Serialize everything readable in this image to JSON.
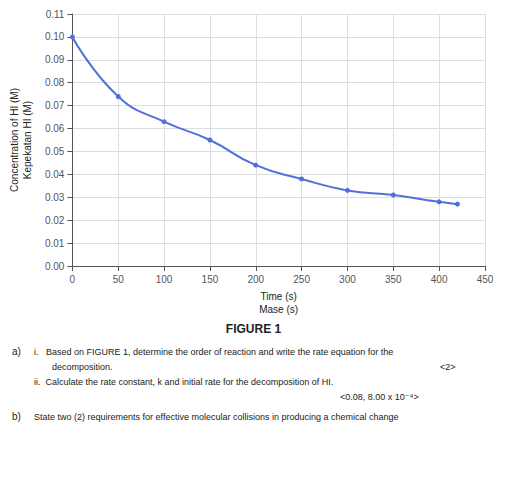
{
  "chart_data": {
    "type": "line",
    "title": "FIGURE 1",
    "xlabel": [
      "Time (s)",
      "Mase (s)"
    ],
    "ylabel": [
      "Concentration of HI (M)",
      "Kepekatan HI (M)"
    ],
    "x": [
      0,
      50,
      100,
      150,
      200,
      250,
      300,
      350,
      400,
      420
    ],
    "values": [
      0.1,
      0.074,
      0.063,
      0.055,
      0.044,
      0.038,
      0.033,
      0.031,
      0.028,
      0.027
    ],
    "marker": "circle",
    "xlim": [
      0,
      450
    ],
    "xticks": [
      0,
      50,
      100,
      150,
      200,
      250,
      300,
      350,
      400,
      450
    ],
    "ylim": [
      0,
      0.11
    ],
    "yticks": [
      {
        "value": 0,
        "label": "0.00"
      },
      {
        "value": 0.01,
        "label": "0.01"
      },
      {
        "value": 0.02,
        "label": "0.02"
      },
      {
        "value": 0.03,
        "label": "0.03"
      },
      {
        "value": 0.04,
        "label": "0.04"
      },
      {
        "value": 0.05,
        "label": "0.05"
      },
      {
        "value": 0.06,
        "label": "0.06"
      },
      {
        "value": 0.07,
        "label": "0.07"
      },
      {
        "value": 0.08,
        "label": "0.08"
      },
      {
        "value": 0.09,
        "label": "0.09"
      },
      {
        "value": 0.1,
        "label": "0.10"
      },
      {
        "value": 0.11,
        "label": "0.11"
      }
    ],
    "grid": true,
    "annotations": [
      "a)",
      "i.   Based on FIGURE 1, determine the order of reaction and write the rate equation for the",
      "decomposition.",
      "<2>",
      "ii.  Calculate the rate constant, k and initial rate for the decomposition of HI.",
      "<0.08, 8.00 x 10⁻⁴>",
      "b)",
      "State two (2) requirements for effective molecular collisions in producing a chemical change"
    ]
  }
}
